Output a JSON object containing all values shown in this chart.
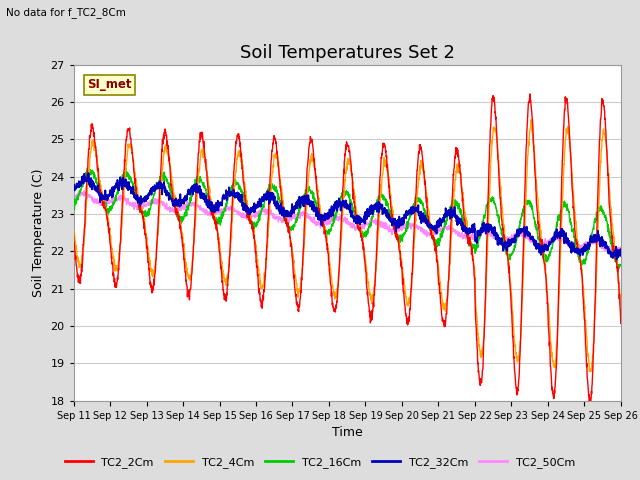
{
  "title": "Soil Temperatures Set 2",
  "subtitle": "No data for f_TC2_8Cm",
  "xlabel": "Time",
  "ylabel": "Soil Temperature (C)",
  "ylim": [
    18.0,
    27.0
  ],
  "yticks": [
    18.0,
    19.0,
    20.0,
    21.0,
    22.0,
    23.0,
    24.0,
    25.0,
    26.0,
    27.0
  ],
  "xtick_labels": [
    "Sep 11",
    "Sep 12",
    "Sep 13",
    "Sep 14",
    "Sep 15",
    "Sep 16",
    "Sep 17",
    "Sep 18",
    "Sep 19",
    "Sep 20",
    "Sep 21",
    "Sep 22",
    "Sep 23",
    "Sep 24",
    "Sep 25",
    "Sep 26"
  ],
  "series_names": [
    "TC2_2Cm",
    "TC2_4Cm",
    "TC2_16Cm",
    "TC2_32Cm",
    "TC2_50Cm"
  ],
  "colors": [
    "#FF0000",
    "#FFA500",
    "#00CC00",
    "#0000BB",
    "#FF88FF"
  ],
  "lw": 1.0,
  "annotation_text": "SI_met",
  "annotation_color": "#880000",
  "annotation_bg": "#FFFFCC",
  "annotation_edge": "#888800",
  "bg_color": "#DDDDDD",
  "plot_bg": "#FFFFFF",
  "grid_color": "#CCCCCC",
  "title_fontsize": 13,
  "label_fontsize": 9,
  "tick_fontsize": 8
}
